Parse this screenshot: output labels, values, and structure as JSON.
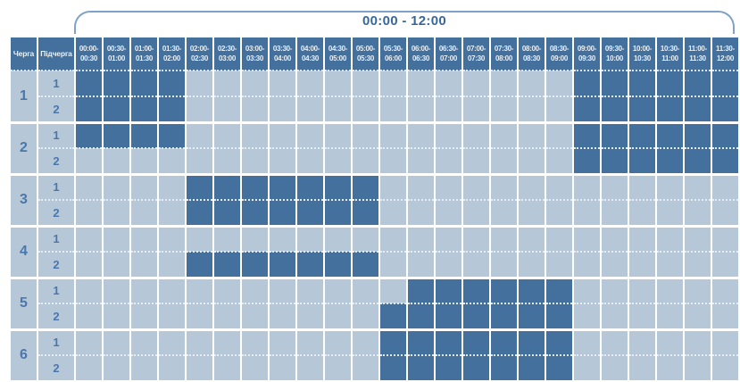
{
  "colors": {
    "header_cell_bg": "#44709e",
    "header_text": "#e9f0f7",
    "filled_cell": "#44709e",
    "empty_cell": "#b6c7d7",
    "number_text": "#4a77ad",
    "title_text": "#38689b",
    "bracket_line": "#7ea2ca",
    "grid_line": "#ffffff"
  },
  "chart_data": {
    "type": "heatmap",
    "title": "00:00 - 12:00",
    "col_queue": "Черга",
    "col_subqueue": "Підчерга",
    "xlabels": [
      "00:00-\n00:30",
      "00:30-\n01:00",
      "01:00-\n01:30",
      "01:30-\n02:00",
      "02:00-\n02:30",
      "02:30-\n03:00",
      "03:00-\n03:30",
      "03:30-\n04:00",
      "04:00-\n04:30",
      "04:30-\n05:00",
      "05:00-\n05:30",
      "05:30-\n06:00",
      "06:00-\n06:30",
      "06:30-\n07:00",
      "07:00-\n07:30",
      "07:30-\n08:00",
      "08:00-\n08:30",
      "08:30-\n09:00",
      "09:00-\n09:30",
      "09:30-\n10:00",
      "10:00-\n10:30",
      "10:30-\n11:00",
      "11:00-\n11:30",
      "11:30-\n12:00"
    ],
    "queues": [
      {
        "number": "1",
        "subqueues": [
          {
            "number": "1",
            "cells": [
              1,
              1,
              1,
              1,
              0,
              0,
              0,
              0,
              0,
              0,
              0,
              0,
              0,
              0,
              0,
              0,
              0,
              0,
              1,
              1,
              1,
              1,
              1,
              1
            ]
          },
          {
            "number": "2",
            "cells": [
              1,
              1,
              1,
              1,
              0,
              0,
              0,
              0,
              0,
              0,
              0,
              0,
              0,
              0,
              0,
              0,
              0,
              0,
              1,
              1,
              1,
              1,
              1,
              1
            ]
          }
        ]
      },
      {
        "number": "2",
        "subqueues": [
          {
            "number": "1",
            "cells": [
              1,
              1,
              1,
              1,
              0,
              0,
              0,
              0,
              0,
              0,
              0,
              0,
              0,
              0,
              0,
              0,
              0,
              0,
              1,
              1,
              1,
              1,
              1,
              1
            ]
          },
          {
            "number": "2",
            "cells": [
              0,
              0,
              0,
              0,
              0,
              0,
              0,
              0,
              0,
              0,
              0,
              0,
              0,
              0,
              0,
              0,
              0,
              0,
              1,
              1,
              1,
              1,
              1,
              1
            ]
          }
        ]
      },
      {
        "number": "3",
        "subqueues": [
          {
            "number": "1",
            "cells": [
              0,
              0,
              0,
              0,
              1,
              1,
              1,
              1,
              1,
              1,
              1,
              0,
              0,
              0,
              0,
              0,
              0,
              0,
              0,
              0,
              0,
              0,
              0,
              0
            ]
          },
          {
            "number": "2",
            "cells": [
              0,
              0,
              0,
              0,
              1,
              1,
              1,
              1,
              1,
              1,
              1,
              0,
              0,
              0,
              0,
              0,
              0,
              0,
              0,
              0,
              0,
              0,
              0,
              0
            ]
          }
        ]
      },
      {
        "number": "4",
        "subqueues": [
          {
            "number": "1",
            "cells": [
              0,
              0,
              0,
              0,
              0,
              0,
              0,
              0,
              0,
              0,
              0,
              0,
              0,
              0,
              0,
              0,
              0,
              0,
              0,
              0,
              0,
              0,
              0,
              0
            ]
          },
          {
            "number": "2",
            "cells": [
              0,
              0,
              0,
              0,
              1,
              1,
              1,
              1,
              1,
              1,
              1,
              0,
              0,
              0,
              0,
              0,
              0,
              0,
              0,
              0,
              0,
              0,
              0,
              0
            ]
          }
        ]
      },
      {
        "number": "5",
        "subqueues": [
          {
            "number": "1",
            "cells": [
              0,
              0,
              0,
              0,
              0,
              0,
              0,
              0,
              0,
              0,
              0,
              0,
              1,
              1,
              1,
              1,
              1,
              1,
              0,
              0,
              0,
              0,
              0,
              0
            ]
          },
          {
            "number": "2",
            "cells": [
              0,
              0,
              0,
              0,
              0,
              0,
              0,
              0,
              0,
              0,
              0,
              1,
              1,
              1,
              1,
              1,
              1,
              1,
              0,
              0,
              0,
              0,
              0,
              0
            ]
          }
        ]
      },
      {
        "number": "6",
        "subqueues": [
          {
            "number": "1",
            "cells": [
              0,
              0,
              0,
              0,
              0,
              0,
              0,
              0,
              0,
              0,
              0,
              1,
              1,
              1,
              1,
              1,
              1,
              1,
              0,
              0,
              0,
              0,
              0,
              0
            ]
          },
          {
            "number": "2",
            "cells": [
              0,
              0,
              0,
              0,
              0,
              0,
              0,
              0,
              0,
              0,
              0,
              1,
              1,
              1,
              1,
              1,
              1,
              1,
              0,
              0,
              0,
              0,
              0,
              0
            ]
          }
        ]
      }
    ]
  }
}
